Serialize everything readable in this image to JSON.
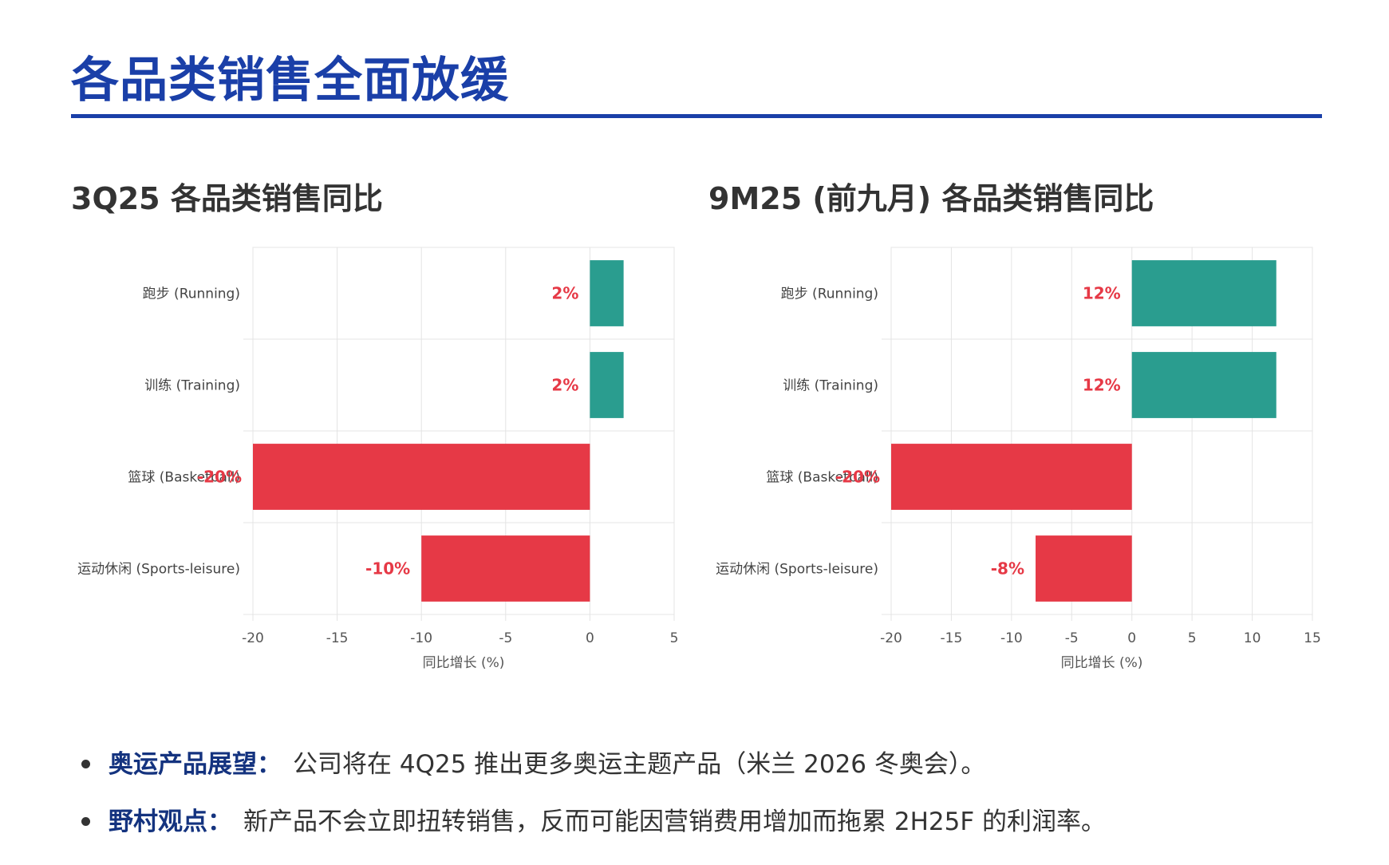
{
  "page": {
    "title": "各品类销售全面放缓",
    "accent_color": "#1a3fa8"
  },
  "chart_data": [
    {
      "type": "bar",
      "orientation": "horizontal",
      "title": "3Q25 各品类销售同比",
      "categories": [
        "跑步 (Running)",
        "训练 (Training)",
        "篮球 (Basketball)",
        "运动休闲 (Sports-leisure)"
      ],
      "values": [
        2,
        2,
        -20,
        -10
      ],
      "value_labels": [
        "2%",
        "2%",
        "-20%",
        "-10%"
      ],
      "xlabel": "同比增长 (%)",
      "ylabel": "",
      "xlim": [
        -20,
        5
      ],
      "xticks": [
        -20,
        -15,
        -10,
        -5,
        0,
        5
      ],
      "grid": true,
      "colors": {
        "positive": "#2a9d8f",
        "negative": "#e63946",
        "value_label": "#e63946"
      }
    },
    {
      "type": "bar",
      "orientation": "horizontal",
      "title": "9M25 (前九月) 各品类销售同比",
      "categories": [
        "跑步 (Running)",
        "训练 (Training)",
        "篮球 (Basketball)",
        "运动休闲 (Sports-leisure)"
      ],
      "values": [
        12,
        12,
        -20,
        -8
      ],
      "value_labels": [
        "12%",
        "12%",
        "-20%",
        "-8%"
      ],
      "xlabel": "同比增长 (%)",
      "ylabel": "",
      "xlim": [
        -20,
        15
      ],
      "xticks": [
        -20,
        -15,
        -10,
        -5,
        0,
        5,
        10,
        15
      ],
      "grid": true,
      "colors": {
        "positive": "#2a9d8f",
        "negative": "#e63946",
        "value_label": "#e63946"
      }
    }
  ],
  "bullets": [
    {
      "key": "奥运产品展望：",
      "text": "公司将在 4Q25 推出更多奥运主题产品（米兰 2026 冬奥会）。"
    },
    {
      "key": "野村观点：",
      "text": "新产品不会立即扭转销售，反而可能因营销费用增加而拖累 2H25F 的利润率。"
    }
  ]
}
